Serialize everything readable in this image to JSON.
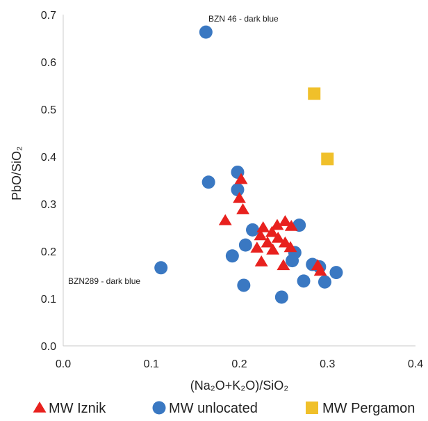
{
  "chart_data": {
    "type": "scatter",
    "xlabel": "(Na₂O+K₂O)/SiO₂",
    "ylabel": "PbO/SiO₂",
    "xlim": [
      0,
      0.4
    ],
    "ylim": [
      0,
      0.7
    ],
    "x_ticks": [
      "0.0",
      "0.1",
      "0.2",
      "0.3",
      "0.4"
    ],
    "x_tick_values": [
      0,
      0.1,
      0.2,
      0.3,
      0.4
    ],
    "y_ticks": [
      "0.0",
      "0.1",
      "0.2",
      "0.3",
      "0.4",
      "0.5",
      "0.6",
      "0.7"
    ],
    "y_tick_values": [
      0,
      0.1,
      0.2,
      0.3,
      0.4,
      0.5,
      0.6,
      0.7
    ],
    "grid": false,
    "legend_position": "bottom",
    "annotations": [
      {
        "text": "BZN 46 - dark blue",
        "x": 0.162,
        "y": 0.663
      },
      {
        "text": "BZN289 - dark blue",
        "x": 0.111,
        "y": 0.165
      }
    ],
    "series": [
      {
        "name": "MW Iznik",
        "marker": "triangle",
        "color": "#e8211e",
        "points": [
          [
            0.202,
            0.352
          ],
          [
            0.2,
            0.312
          ],
          [
            0.204,
            0.288
          ],
          [
            0.184,
            0.265
          ],
          [
            0.227,
            0.25
          ],
          [
            0.243,
            0.255
          ],
          [
            0.252,
            0.263
          ],
          [
            0.259,
            0.253
          ],
          [
            0.237,
            0.24
          ],
          [
            0.224,
            0.233
          ],
          [
            0.244,
            0.228
          ],
          [
            0.252,
            0.218
          ],
          [
            0.232,
            0.218
          ],
          [
            0.22,
            0.207
          ],
          [
            0.238,
            0.203
          ],
          [
            0.258,
            0.208
          ],
          [
            0.225,
            0.178
          ],
          [
            0.25,
            0.17
          ],
          [
            0.289,
            0.17
          ],
          [
            0.292,
            0.158
          ]
        ]
      },
      {
        "name": "MW unlocated",
        "marker": "circle",
        "color": "#3a78c2",
        "points": [
          [
            0.162,
            0.663
          ],
          [
            0.198,
            0.367
          ],
          [
            0.165,
            0.346
          ],
          [
            0.198,
            0.33
          ],
          [
            0.268,
            0.255
          ],
          [
            0.215,
            0.245
          ],
          [
            0.207,
            0.213
          ],
          [
            0.263,
            0.197
          ],
          [
            0.192,
            0.19
          ],
          [
            0.26,
            0.18
          ],
          [
            0.283,
            0.172
          ],
          [
            0.291,
            0.167
          ],
          [
            0.111,
            0.165
          ],
          [
            0.31,
            0.155
          ],
          [
            0.273,
            0.137
          ],
          [
            0.297,
            0.135
          ],
          [
            0.205,
            0.128
          ],
          [
            0.248,
            0.103
          ]
        ]
      },
      {
        "name": "MW Pergamon",
        "marker": "square",
        "color": "#f0c02a",
        "points": [
          [
            0.285,
            0.533
          ],
          [
            0.3,
            0.395
          ]
        ]
      }
    ]
  }
}
